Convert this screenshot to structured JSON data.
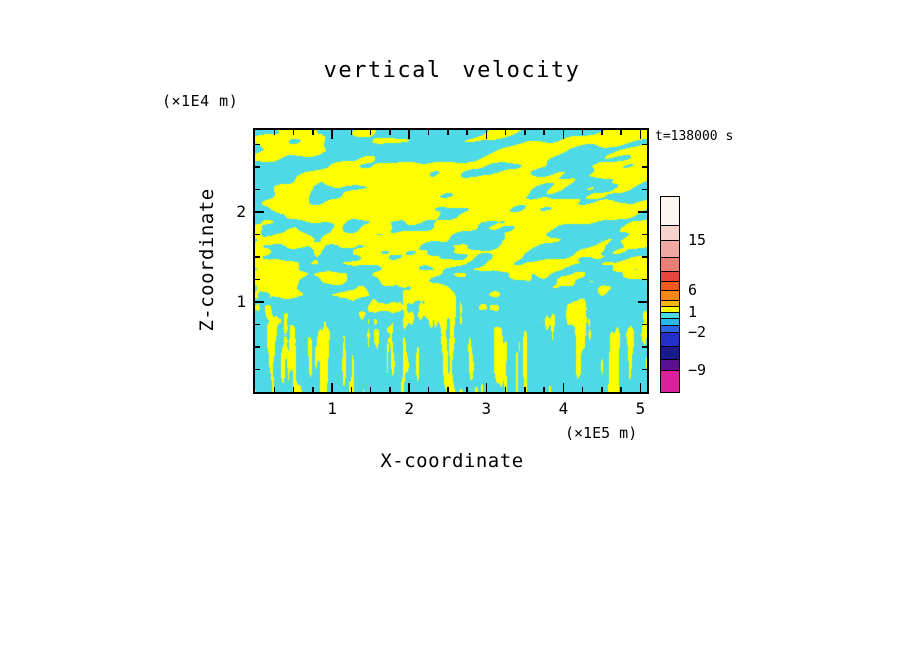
{
  "chart_data": {
    "type": "heatmap",
    "title": "vertical velocity",
    "time_label": "t=138000 s",
    "xlabel": "X-coordinate",
    "ylabel": "Z-coordinate",
    "x_units": "(×1E5 m)",
    "y_units": "(×1E4 m)",
    "x_range": [
      0,
      5.08
    ],
    "z_range": [
      0,
      2.91
    ],
    "x_ticks": [
      1,
      2,
      3,
      4,
      5
    ],
    "z_ticks": [
      1,
      2
    ],
    "x_minor_step": 0.25,
    "z_minor_step": 0.25,
    "grid": false,
    "legend_position": "right-colorbar",
    "field": {
      "description": "binary turbulent vertical-velocity field; yellow patches = positive (upward) velocity, cyan = negative (downward); horizontally elongated blobs in upper two thirds, thin vertical streaks near the bottom",
      "positive_color": "#FFFF00",
      "negative_color": "#4DD9E6",
      "pattern": {
        "seed": 1371,
        "octaves": [
          0.62,
          0.38
        ],
        "blob_freq_x": [
          0.02,
          0.038
        ],
        "blob_freq_y": [
          0.05,
          0.068
        ],
        "streak_freq_x": 0.15,
        "streak_freq_y": 0.016,
        "streak_start": 0.55,
        "streak_full": 0.88,
        "bias_curve": [
          [
            0,
            0.02
          ],
          [
            0.08,
            -0.07
          ],
          [
            0.2,
            -0.02
          ],
          [
            0.3,
            -0.09
          ],
          [
            0.45,
            -0.02
          ],
          [
            0.6,
            0.06
          ],
          [
            0.8,
            0.1
          ],
          [
            1,
            0.13
          ]
        ]
      }
    },
    "colorbar": {
      "levels": [
        15,
        6,
        1,
        -2,
        -9
      ],
      "segments": [
        {
          "color": "#FBF4F0",
          "h": 28
        },
        {
          "color": "#F6D3CC",
          "h": 15,
          "label": "15"
        },
        {
          "color": "#F0A9A2",
          "h": 17
        },
        {
          "color": "#EA7D76",
          "h": 14
        },
        {
          "color": "#E4453E",
          "h": 10
        },
        {
          "color": "#EC5A20",
          "h": 9,
          "label": "6"
        },
        {
          "color": "#F6871B",
          "h": 10
        },
        {
          "color": "#FBB60F",
          "h": 6
        },
        {
          "color": "#FFFF00",
          "h": 6,
          "label": "1"
        },
        {
          "color": "#4DD9E6",
          "h": 6
        },
        {
          "color": "#29B6E8",
          "h": 7
        },
        {
          "color": "#2E66E0",
          "h": 7,
          "label": "−2"
        },
        {
          "color": "#2430C8",
          "h": 14
        },
        {
          "color": "#1A1A8C",
          "h": 13
        },
        {
          "color": "#5A1090",
          "h": 11,
          "label": "−9"
        },
        {
          "color": "#D9219E",
          "h": 22
        }
      ]
    }
  }
}
